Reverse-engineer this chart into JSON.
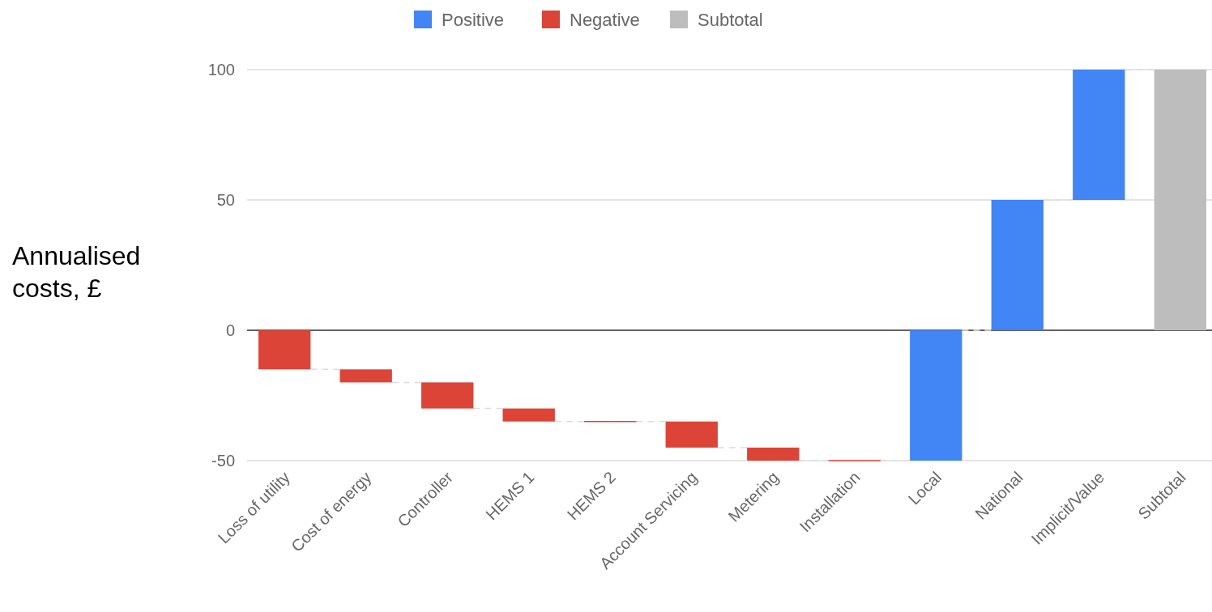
{
  "chart_data": {
    "type": "bar",
    "ylabel": "Annualised costs, £",
    "categories": [
      "Loss of utility",
      "Cost of energy",
      "Controller",
      "HEMS 1",
      "HEMS 2",
      "Account Servicing",
      "Metering",
      "Installation",
      "Local",
      "National",
      "Implicit/Value",
      "Subtotal"
    ],
    "series": [
      {
        "name": "Positive",
        "color": "#4285f4",
        "values": [
          null,
          null,
          null,
          null,
          null,
          null,
          null,
          null,
          50,
          50,
          50,
          null
        ],
        "base": [
          null,
          null,
          null,
          null,
          null,
          null,
          null,
          null,
          -50,
          0,
          50,
          null
        ]
      },
      {
        "name": "Negative",
        "color": "#db4437",
        "values": [
          -15,
          -5,
          -10,
          -5,
          0,
          -10,
          -5,
          0,
          null,
          null,
          null,
          null
        ],
        "base": [
          0,
          -15,
          -20,
          -30,
          -35,
          -35,
          -45,
          -50,
          null,
          null,
          null,
          null
        ]
      },
      {
        "name": "Subtotal",
        "color": "#bdbdbd",
        "values": [
          null,
          null,
          null,
          null,
          null,
          null,
          null,
          null,
          null,
          null,
          null,
          100
        ],
        "base": [
          null,
          null,
          null,
          null,
          null,
          null,
          null,
          null,
          null,
          null,
          null,
          0
        ]
      }
    ],
    "ylim": [
      -50,
      100
    ],
    "yticks": [
      -50,
      0,
      50,
      100
    ],
    "grid": true,
    "legend": "top"
  }
}
